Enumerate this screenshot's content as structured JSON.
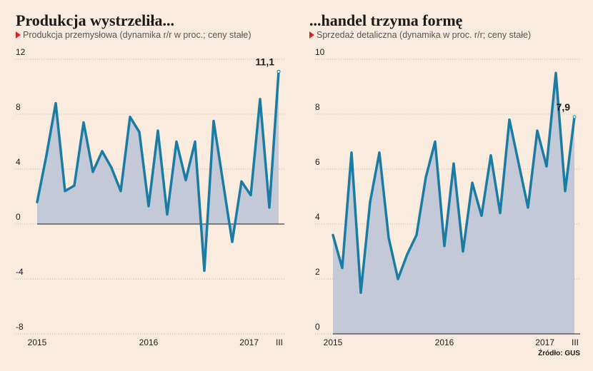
{
  "chart_data": [
    {
      "type": "area",
      "title": "Produkcja wystrzeliła...",
      "subtitle": "Produkcja przemysłowa (dynamika r/r w proc.; ceny stałe)",
      "x_labels": [
        "2015",
        "2016",
        "2017",
        "III"
      ],
      "x_label_index": [
        0,
        12,
        24,
        26
      ],
      "ylim": [
        -8,
        12
      ],
      "yticks": [
        12,
        8,
        4,
        0,
        -4,
        -8
      ],
      "ytick_labels": [
        "12",
        "8",
        "4",
        "0",
        "-4",
        "-8"
      ],
      "values": [
        1.6,
        5.0,
        8.8,
        2.4,
        2.8,
        7.4,
        3.8,
        5.3,
        4.1,
        2.4,
        7.8,
        6.7,
        1.3,
        6.8,
        0.7,
        6.0,
        3.2,
        6.0,
        -3.4,
        7.5,
        3.1,
        -1.3,
        3.1,
        2.1,
        9.1,
        1.2,
        11.1
      ],
      "last_label": "11,1",
      "grid": true
    },
    {
      "type": "area",
      "title": "...handel trzyma formę",
      "subtitle": "Sprzedaż detaliczna (dynamika w proc. r/r; ceny stałe)",
      "x_labels": [
        "2015",
        "2016",
        "2017",
        "III"
      ],
      "x_label_index": [
        0,
        12,
        24,
        26
      ],
      "ylim": [
        0,
        10
      ],
      "yticks": [
        10,
        8,
        6,
        4,
        2,
        0
      ],
      "ytick_labels": [
        "10",
        "8",
        "6",
        "4",
        "2",
        "0"
      ],
      "values": [
        3.6,
        2.4,
        6.6,
        1.5,
        4.8,
        6.6,
        3.5,
        2.0,
        2.9,
        3.6,
        5.7,
        7.0,
        3.2,
        6.2,
        3.0,
        5.5,
        4.3,
        6.5,
        4.4,
        7.8,
        6.2,
        4.6,
        7.4,
        6.1,
        9.5,
        5.2,
        7.9
      ],
      "last_label": "7,9",
      "grid": true
    }
  ],
  "colors": {
    "line": "#1a7ba3",
    "fill": "#c3c9d6",
    "grid": "#c4b9b0",
    "baseline": "#1a1a1a"
  },
  "source": "Źródło: GUS"
}
